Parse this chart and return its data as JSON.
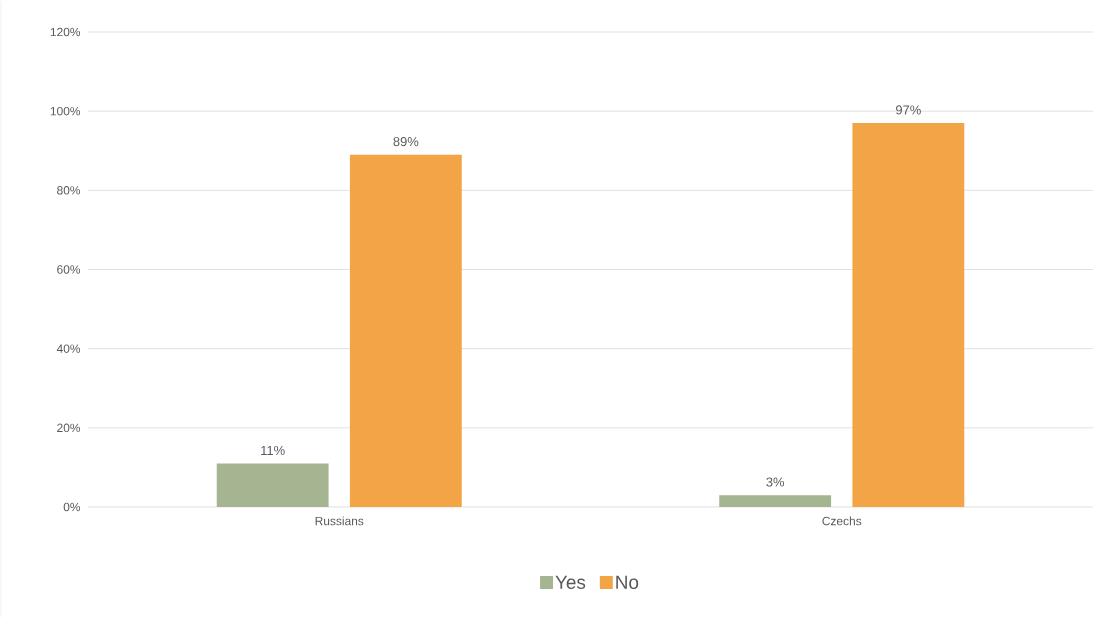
{
  "chart_data": {
    "type": "bar",
    "categories": [
      "Russians",
      "Czechs"
    ],
    "series": [
      {
        "name": "Yes",
        "color": "#a5b592",
        "values": [
          11,
          3
        ],
        "value_labels": [
          "11%",
          "3%"
        ]
      },
      {
        "name": "No",
        "color": "#f3a447",
        "values": [
          89,
          97
        ],
        "value_labels": [
          "89%",
          "97%"
        ]
      }
    ],
    "ylim": [
      0,
      120
    ],
    "yticks": [
      {
        "value": 0,
        "label": "0%"
      },
      {
        "value": 20,
        "label": "20%"
      },
      {
        "value": 40,
        "label": "40%"
      },
      {
        "value": 60,
        "label": "60%"
      },
      {
        "value": 80,
        "label": "80%"
      },
      {
        "value": 100,
        "label": "100%"
      },
      {
        "value": 120,
        "label": "120%"
      }
    ],
    "grid": "y",
    "legend": "bottom"
  }
}
